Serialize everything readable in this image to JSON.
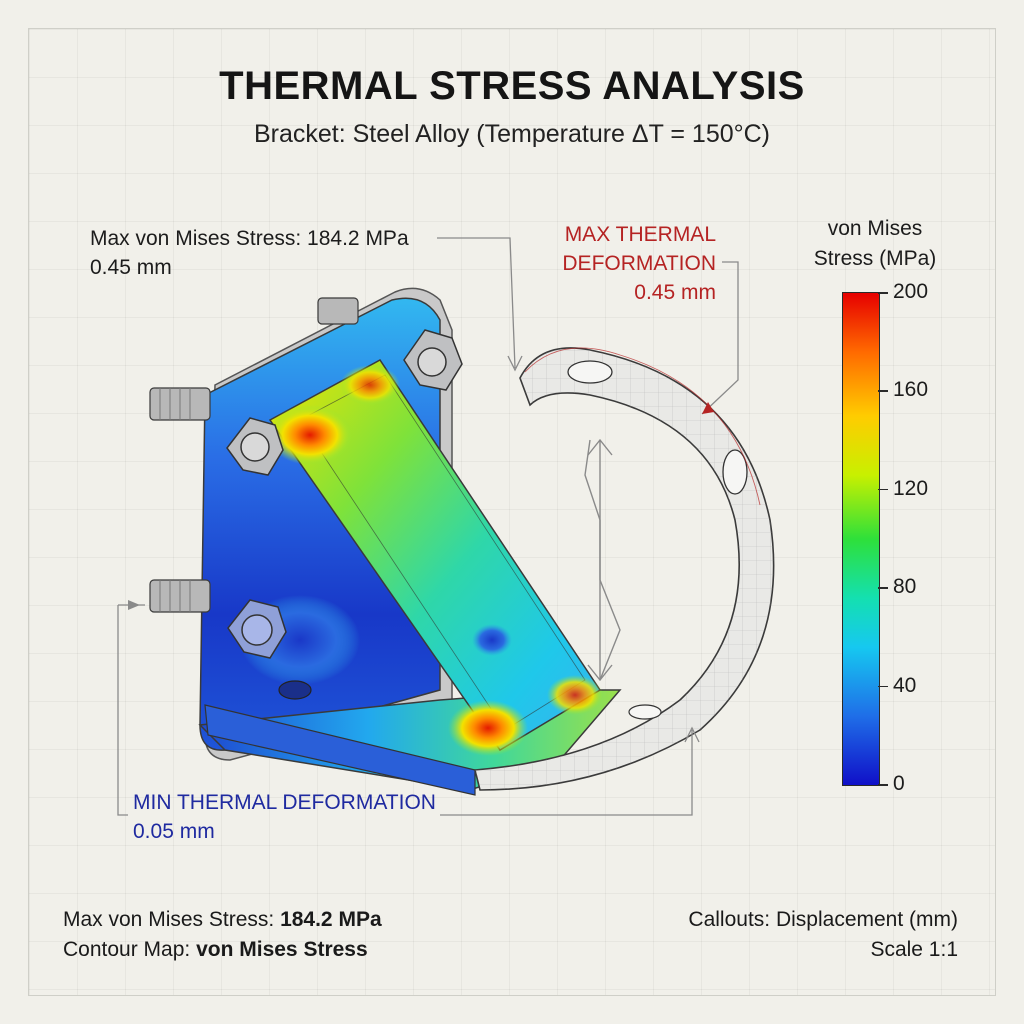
{
  "header": {
    "title": "THERMAL STRESS ANALYSIS",
    "subtitle": "Bracket: Steel Alloy (Temperature ΔT = 150°C)"
  },
  "callouts": {
    "max_stress_line1": "Max von Mises Stress: 184.2 MPa",
    "max_stress_line2": "0.45 mm",
    "max_def_line1": "MAX THERMAL",
    "max_def_line2": "DEFORMATION",
    "max_def_line3": "0.45 mm",
    "min_def_line1": "MIN THERMAL DEFORMATION",
    "min_def_line2": "0.05 mm"
  },
  "colorbar": {
    "title_line1": "von Mises",
    "title_line2": "Stress (MPa)",
    "ticks": [
      "200",
      "160",
      "120",
      "80",
      "40",
      "0"
    ]
  },
  "footer": {
    "left_line1_label": "Max von Mises Stress: ",
    "left_line1_value": "184.2 MPa",
    "left_line2_label": "Contour Map: ",
    "left_line2_value": "von Mises Stress",
    "right_line1": "Callouts: Displacement (mm)",
    "right_line2": "Scale 1:1"
  },
  "colors": {
    "max_deformation": "#b52323",
    "min_deformation": "#1f2aa0",
    "stress_high": "#e60000",
    "stress_low": "#1010c8"
  }
}
